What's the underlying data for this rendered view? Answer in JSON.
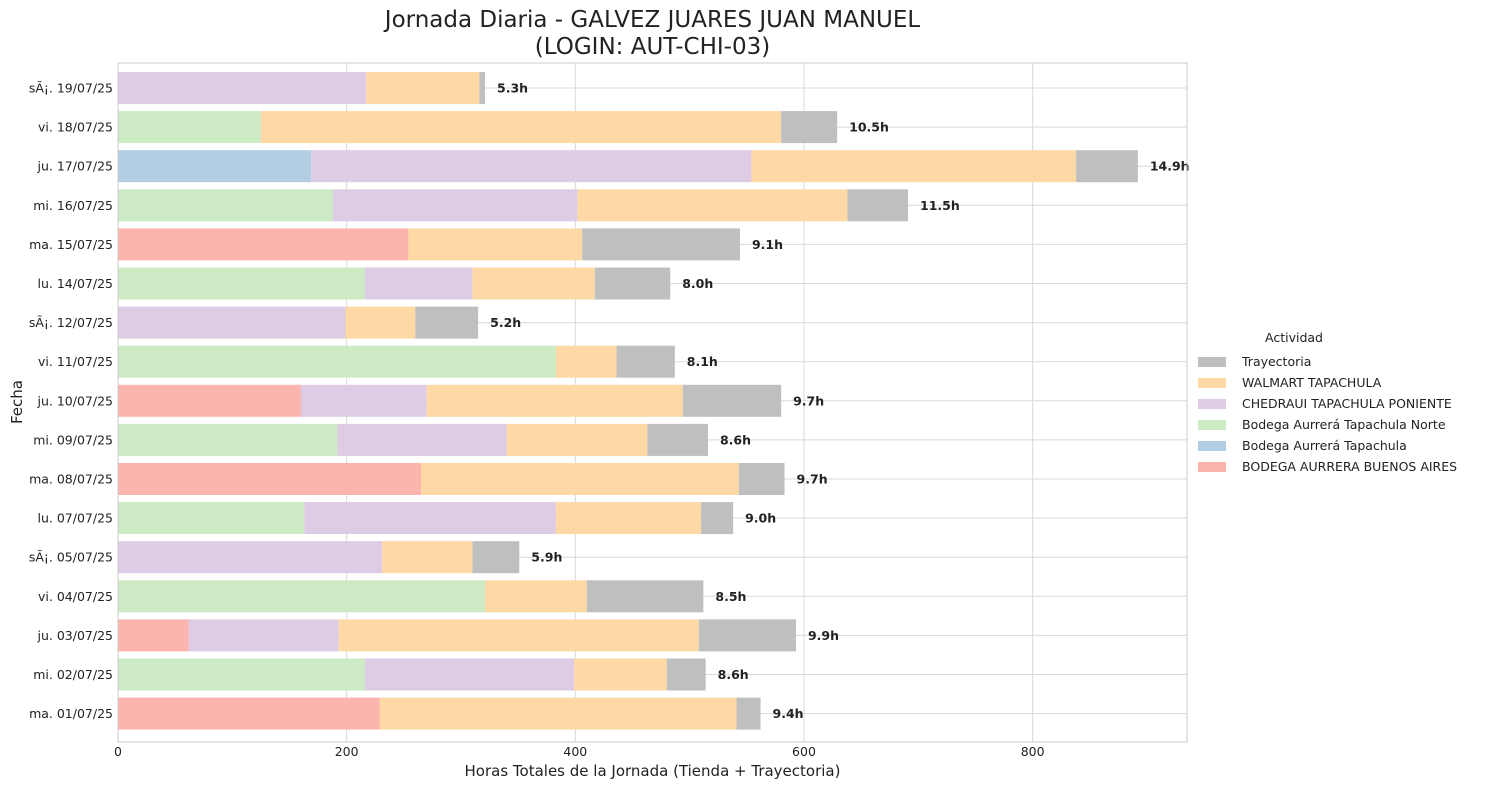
{
  "chart_data": {
    "type": "bar",
    "orientation": "horizontal",
    "stacked": true,
    "title_line1": "Jornada Diaria - GALVEZ JUARES JUAN MANUEL",
    "title_line2": "(LOGIN: AUT-CHI-03)",
    "xlabel": "Horas Totales de la Jornada (Tienda + Trayectoria)",
    "ylabel": "Fecha",
    "xlim": [
      0,
      935
    ],
    "xticks": [
      0,
      200,
      400,
      600,
      800
    ],
    "grid": true,
    "legend": {
      "title": "Actividad",
      "placement": "right"
    },
    "categories": [
      "sÃ¡. 19/07/25",
      "vi. 18/07/25",
      "ju. 17/07/25",
      "mi. 16/07/25",
      "ma. 15/07/25",
      "lu. 14/07/25",
      "sÃ¡. 12/07/25",
      "vi. 11/07/25",
      "ju. 10/07/25",
      "mi. 09/07/25",
      "ma. 08/07/25",
      "lu. 07/07/25",
      "sÃ¡. 05/07/25",
      "vi. 04/07/25",
      "ju. 03/07/25",
      "mi. 02/07/25",
      "ma. 01/07/25"
    ],
    "stack_order": [
      "BODEGA AURRERA BUENOS AIRES",
      "Bodega Aurrerá Tapachula",
      "Bodega Aurrerá Tapachula Norte",
      "CHEDRAUI TAPACHULA PONIENTE",
      "WALMART TAPACHULA",
      "Trayectoria"
    ],
    "legend_order": [
      "Trayectoria",
      "WALMART TAPACHULA",
      "CHEDRAUI TAPACHULA PONIENTE",
      "Bodega Aurrerá Tapachula Norte",
      "Bodega Aurrerá Tapachula",
      "BODEGA AURRERA BUENOS AIRES"
    ],
    "colors": {
      "Trayectoria": "#bfbfbf",
      "WALMART TAPACHULA": "#fed9a6",
      "CHEDRAUI TAPACHULA PONIENTE": "#decbe4",
      "Bodega Aurrerá Tapachula Norte": "#ccebc5",
      "Bodega Aurrerá Tapachula": "#b3cde3",
      "BODEGA AURRERA BUENOS AIRES": "#fbb4ae"
    },
    "series": [
      {
        "name": "BODEGA AURRERA BUENOS AIRES",
        "values": [
          0,
          0,
          0,
          0,
          254,
          0,
          0,
          0,
          160,
          0,
          265,
          0,
          0,
          0,
          62,
          0,
          229
        ]
      },
      {
        "name": "Bodega Aurrerá Tapachula",
        "values": [
          0,
          0,
          169,
          0,
          0,
          0,
          0,
          0,
          0,
          0,
          0,
          0,
          0,
          0,
          0,
          0,
          0
        ]
      },
      {
        "name": "Bodega Aurrerá Tapachula Norte",
        "values": [
          0,
          125,
          0,
          188,
          0,
          216,
          0,
          383,
          0,
          192,
          0,
          163,
          0,
          321,
          0,
          216,
          0
        ]
      },
      {
        "name": "CHEDRAUI TAPACHULA PONIENTE",
        "values": [
          217,
          0,
          385,
          214,
          0,
          94,
          199,
          0,
          110,
          148,
          0,
          220,
          231,
          0,
          131,
          183,
          0
        ]
      },
      {
        "name": "WALMART TAPACHULA",
        "values": [
          99,
          455,
          284,
          236,
          152,
          107,
          61,
          53,
          224,
          123,
          278,
          127,
          79,
          89,
          315,
          81,
          312
        ]
      },
      {
        "name": "Trayectoria",
        "values": [
          5,
          49,
          54,
          53,
          138,
          66,
          55,
          51,
          86,
          53,
          40,
          28,
          41,
          102,
          85,
          34,
          21
        ]
      }
    ],
    "total_labels": [
      "5.3h",
      "10.5h",
      "14.9h",
      "11.5h",
      "9.1h",
      "8.0h",
      "5.2h",
      "8.1h",
      "9.7h",
      "8.6h",
      "9.7h",
      "9.0h",
      "5.9h",
      "8.5h",
      "9.9h",
      "8.6h",
      "9.4h"
    ]
  }
}
